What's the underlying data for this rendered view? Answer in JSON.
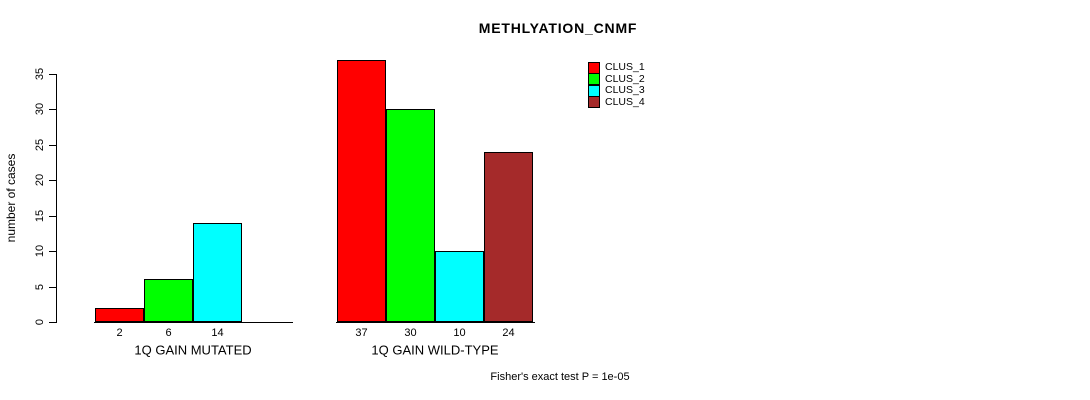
{
  "title": "METHLYATION_CNMF",
  "footer": "Fisher's exact test P = 1e-05",
  "chart_data": {
    "type": "bar",
    "title": "METHLYATION_CNMF",
    "xlabel": "",
    "ylabel": "number of cases",
    "ylim": [
      0,
      35
    ],
    "yticks": [
      0,
      5,
      10,
      15,
      20,
      25,
      30,
      35
    ],
    "grid": false,
    "legend_position": "top-right",
    "bar_value_labels_shown": true,
    "groups": [
      "1Q GAIN MUTATED",
      "1Q GAIN WILD-TYPE"
    ],
    "series": [
      {
        "name": "CLUS_1",
        "color": "#FF0000",
        "values": [
          2,
          37
        ]
      },
      {
        "name": "CLUS_2",
        "color": "#00FF00",
        "values": [
          6,
          30
        ]
      },
      {
        "name": "CLUS_3",
        "color": "#00FFFF",
        "values": [
          14,
          10
        ]
      },
      {
        "name": "CLUS_4",
        "color": "#A52A2A",
        "values": [
          0,
          24
        ]
      }
    ],
    "annotation": "Fisher's exact test P = 1e-05"
  }
}
